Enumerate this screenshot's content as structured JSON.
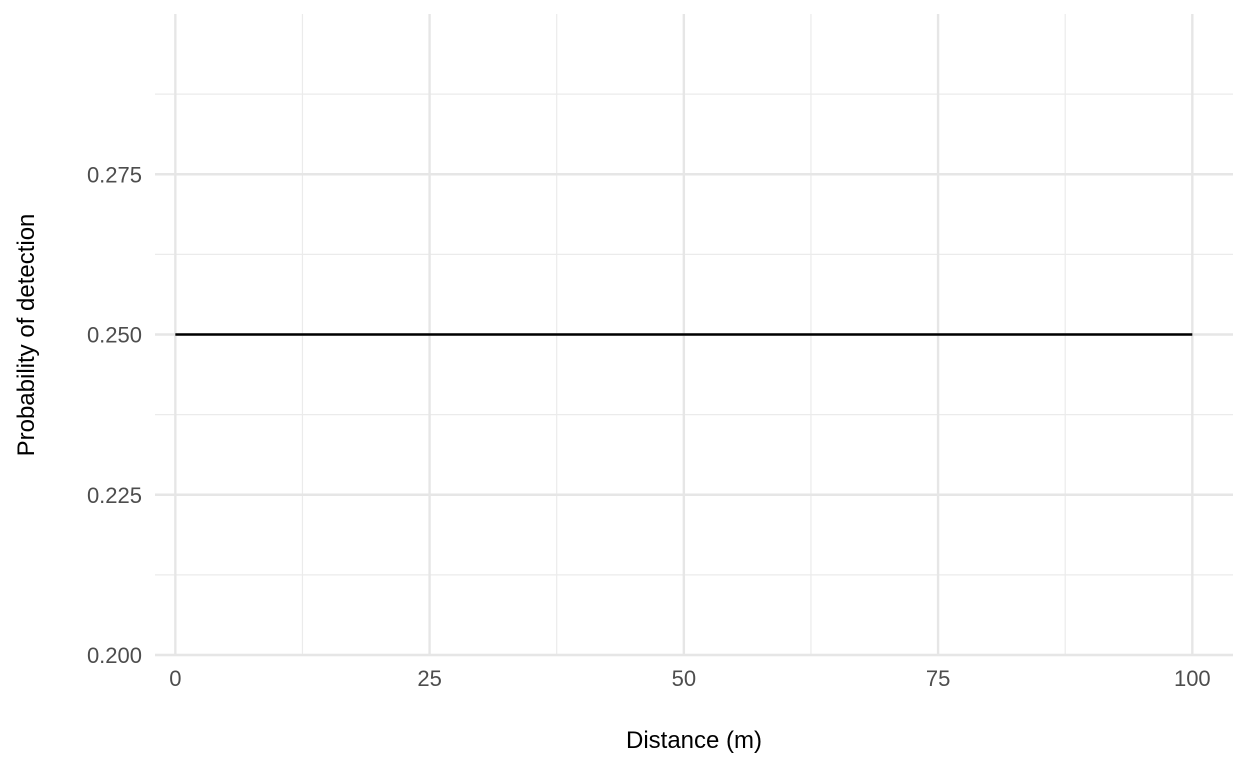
{
  "chart_data": {
    "type": "line",
    "xlabel": "Distance (m)",
    "ylabel": "Probability of detection",
    "xlim": [
      -2,
      104
    ],
    "ylim": [
      0.2,
      0.3
    ],
    "x_ticks": [
      0,
      25,
      50,
      75,
      100
    ],
    "x_tick_labels": [
      "0",
      "25",
      "50",
      "75",
      "100"
    ],
    "x_minor_ticks": [
      12.5,
      37.5,
      62.5,
      87.5
    ],
    "y_ticks": [
      0.2,
      0.225,
      0.25,
      0.275
    ],
    "y_tick_labels": [
      "0.200",
      "0.225",
      "0.250",
      "0.275"
    ],
    "y_minor_ticks": [
      0.2125,
      0.2375,
      0.2625,
      0.2875
    ],
    "grid": true,
    "series": [
      {
        "x": [
          0,
          100
        ],
        "y": [
          0.25,
          0.25
        ],
        "color": "#000000"
      }
    ]
  }
}
